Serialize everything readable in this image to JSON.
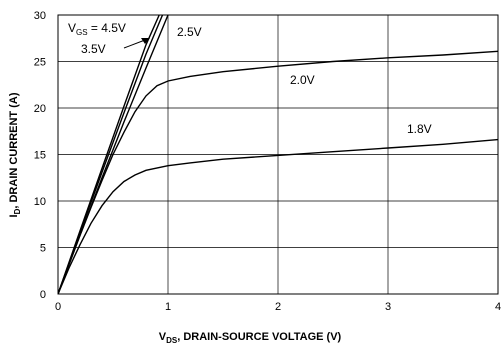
{
  "chart_data": {
    "type": "line",
    "xlabel": {
      "main": "V",
      "sub": "DS",
      "rest": ", DRAIN-SOURCE VOLTAGE (V)"
    },
    "ylabel": {
      "main": "I",
      "sub": "D",
      "rest": ", DRAIN CURRENT (A)"
    },
    "xlim": [
      0,
      4
    ],
    "ylim": [
      0,
      30
    ],
    "xticks": [
      0,
      1,
      2,
      3,
      4
    ],
    "yticks": [
      0,
      5,
      10,
      15,
      20,
      25,
      30
    ],
    "grid": true,
    "series": [
      {
        "name": "4.5V",
        "label_parts": {
          "main": "V",
          "sub": "GS",
          "rest": " = 4.5V"
        },
        "x": [
          0,
          0.2,
          0.4,
          0.6,
          0.8,
          0.92
        ],
        "y": [
          0,
          6.8,
          13.5,
          20.2,
          26.8,
          30
        ]
      },
      {
        "name": "3.5V",
        "label_parts": {
          "main": "",
          "sub": "",
          "rest": "3.5V"
        },
        "x": [
          0,
          0.2,
          0.4,
          0.6,
          0.8,
          0.95
        ],
        "y": [
          0,
          6.6,
          13.1,
          19.5,
          25.8,
          30
        ]
      },
      {
        "name": "2.5V",
        "label_parts": {
          "main": "",
          "sub": "",
          "rest": "2.5V"
        },
        "x": [
          0,
          0.2,
          0.4,
          0.6,
          0.8,
          1.0
        ],
        "y": [
          0,
          6.3,
          12.5,
          18.5,
          24.3,
          30
        ]
      },
      {
        "name": "2.0V",
        "label_parts": {
          "main": "",
          "sub": "",
          "rest": "2.0V"
        },
        "x": [
          0,
          0.1,
          0.2,
          0.3,
          0.4,
          0.5,
          0.6,
          0.7,
          0.8,
          0.9,
          1.0,
          1.2,
          1.5,
          2.0,
          2.5,
          3.0,
          3.5,
          4.0
        ],
        "y": [
          0,
          3.2,
          6.3,
          9.3,
          12.2,
          15.0,
          17.4,
          19.6,
          21.3,
          22.4,
          22.9,
          23.4,
          23.9,
          24.5,
          25.0,
          25.4,
          25.7,
          26.1
        ]
      },
      {
        "name": "1.8V",
        "label_parts": {
          "main": "",
          "sub": "",
          "rest": "1.8V"
        },
        "x": [
          0,
          0.1,
          0.2,
          0.3,
          0.4,
          0.5,
          0.6,
          0.7,
          0.8,
          1.0,
          1.2,
          1.5,
          2.0,
          2.5,
          3.0,
          3.5,
          4.0
        ],
        "y": [
          0,
          2.8,
          5.3,
          7.6,
          9.5,
          11.0,
          12.1,
          12.8,
          13.3,
          13.8,
          14.1,
          14.5,
          14.9,
          15.3,
          15.7,
          16.1,
          16.6
        ]
      }
    ]
  }
}
